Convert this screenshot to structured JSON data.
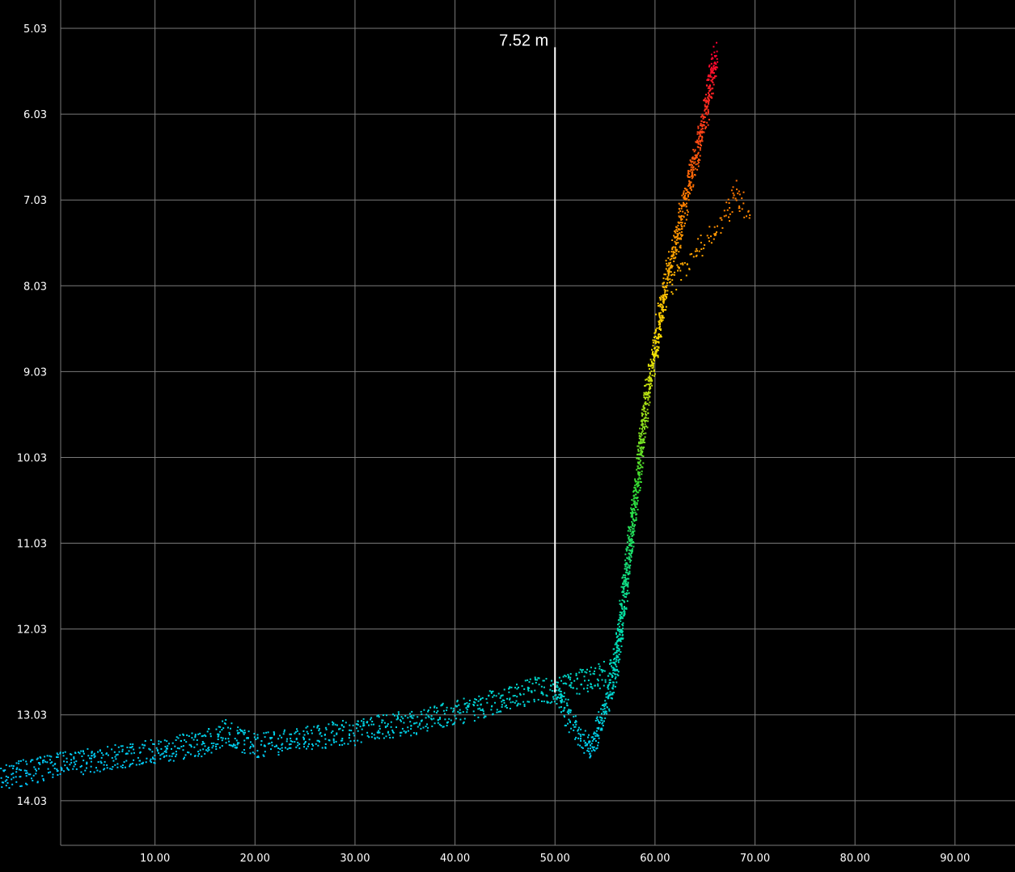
{
  "chart_data": {
    "type": "scatter",
    "title": "",
    "xlabel": "",
    "ylabel": "",
    "xlim": [
      -5.5,
      96.0
    ],
    "ylim": [
      14.55,
      4.7
    ],
    "y_axis_inverted": true,
    "grid": true,
    "background": "#000000",
    "grid_color": "#7a7a7a",
    "x_ticks": [
      "10.00",
      "20.00",
      "30.00",
      "40.00",
      "50.00",
      "60.00",
      "70.00",
      "80.00",
      "90.00"
    ],
    "y_ticks": [
      "5.03",
      "6.03",
      "7.03",
      "8.03",
      "9.03",
      "10.03",
      "11.03",
      "12.03",
      "13.03",
      "14.03"
    ],
    "colormap": [
      "#ff0033",
      "#ff7a00",
      "#ffe000",
      "#33dd33",
      "#00e0b0",
      "#00c8ff"
    ],
    "color_by": "y",
    "annotation": {
      "label": "7.52 m",
      "x": 50.0,
      "y_top": 5.25,
      "y_bottom": 12.77
    },
    "profile": {
      "x": [
        -5.5,
        0,
        5,
        10,
        15,
        17,
        20,
        25,
        30,
        35,
        40,
        45,
        48,
        50,
        52,
        54,
        55,
        56,
        57,
        58,
        59,
        60,
        61,
        62,
        63,
        64,
        65,
        66
      ],
      "y": [
        13.75,
        13.62,
        13.53,
        13.45,
        13.35,
        13.22,
        13.38,
        13.3,
        13.22,
        13.12,
        13.0,
        12.85,
        12.72,
        12.75,
        12.65,
        12.58,
        12.55,
        12.45,
        11.5,
        10.5,
        9.4,
        8.7,
        8.0,
        7.55,
        7.0,
        6.5,
        6.0,
        5.3
      ]
    },
    "branch": {
      "x": [
        61.5,
        63,
        65,
        67,
        68,
        69,
        69.5
      ],
      "y": [
        8.0,
        7.8,
        7.5,
        7.2,
        6.9,
        7.15,
        7.25
      ]
    },
    "dip": {
      "x": [
        50,
        51,
        52,
        53,
        53.5,
        54,
        55,
        56
      ],
      "y": [
        12.75,
        13.0,
        13.2,
        13.35,
        13.45,
        13.25,
        12.9,
        12.5
      ]
    },
    "spread": 0.15
  }
}
